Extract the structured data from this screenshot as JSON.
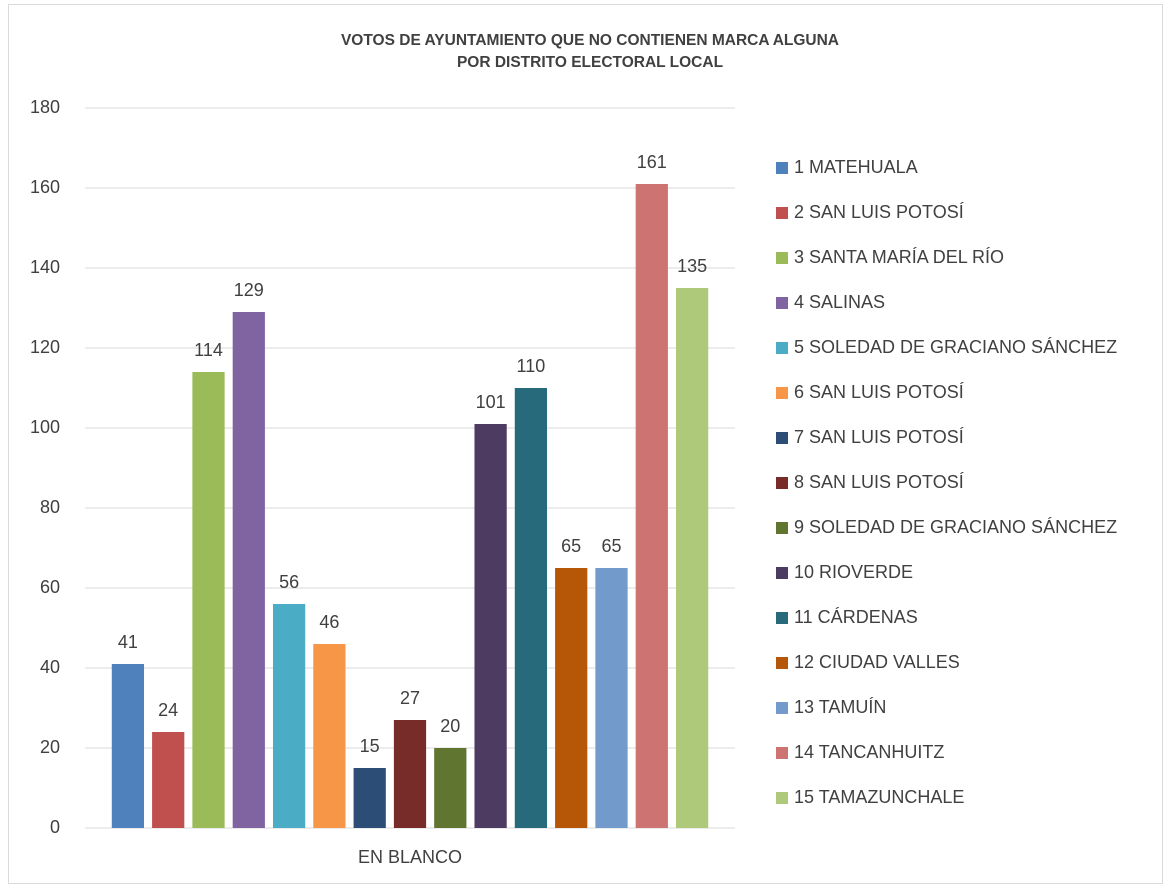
{
  "chart_data": {
    "type": "bar",
    "title": [
      "VOTOS DE AYUNTAMIENTO QUE NO CONTIENEN MARCA ALGUNA",
      "POR DISTRITO ELECTORAL LOCAL"
    ],
    "categories": [
      "EN BLANCO"
    ],
    "series": [
      {
        "name": "1 MATEHUALA",
        "color": "#4f81bd",
        "values": [
          41
        ]
      },
      {
        "name": "2 SAN LUIS POTOSÍ",
        "color": "#c0504d",
        "values": [
          24
        ]
      },
      {
        "name": "3 SANTA MARÍA DEL RÍO",
        "color": "#9bbb59",
        "values": [
          114
        ]
      },
      {
        "name": "4 SALINAS",
        "color": "#8064a2",
        "values": [
          129
        ]
      },
      {
        "name": "5 SOLEDAD DE GRACIANO SÁNCHEZ",
        "color": "#4bacc6",
        "values": [
          56
        ]
      },
      {
        "name": "6 SAN LUIS POTOSÍ",
        "color": "#f79646",
        "values": [
          46
        ]
      },
      {
        "name": "7 SAN LUIS POTOSÍ",
        "color": "#2c4d75",
        "values": [
          15
        ]
      },
      {
        "name": "8 SAN LUIS POTOSÍ",
        "color": "#772c2a",
        "values": [
          27
        ]
      },
      {
        "name": "9 SOLEDAD DE GRACIANO SÁNCHEZ",
        "color": "#5f7530",
        "values": [
          20
        ]
      },
      {
        "name": "10 RIOVERDE",
        "color": "#4d3b62",
        "values": [
          101
        ]
      },
      {
        "name": "11 CÁRDENAS",
        "color": "#276a7c",
        "values": [
          110
        ]
      },
      {
        "name": "12 CIUDAD VALLES",
        "color": "#b65708",
        "values": [
          65
        ]
      },
      {
        "name": "13 TAMUÍN",
        "color": "#729aca",
        "values": [
          65
        ]
      },
      {
        "name": "14 TANCANHUITZ",
        "color": "#cd7371",
        "values": [
          161
        ]
      },
      {
        "name": "15 TAMAZUNCHALE",
        "color": "#afc97a",
        "values": [
          135
        ]
      }
    ],
    "ylim": [
      0,
      180
    ],
    "yticks": [
      0,
      20,
      40,
      60,
      80,
      100,
      120,
      140,
      160,
      180
    ],
    "grid": true,
    "legend": "right",
    "data_labels": true
  }
}
